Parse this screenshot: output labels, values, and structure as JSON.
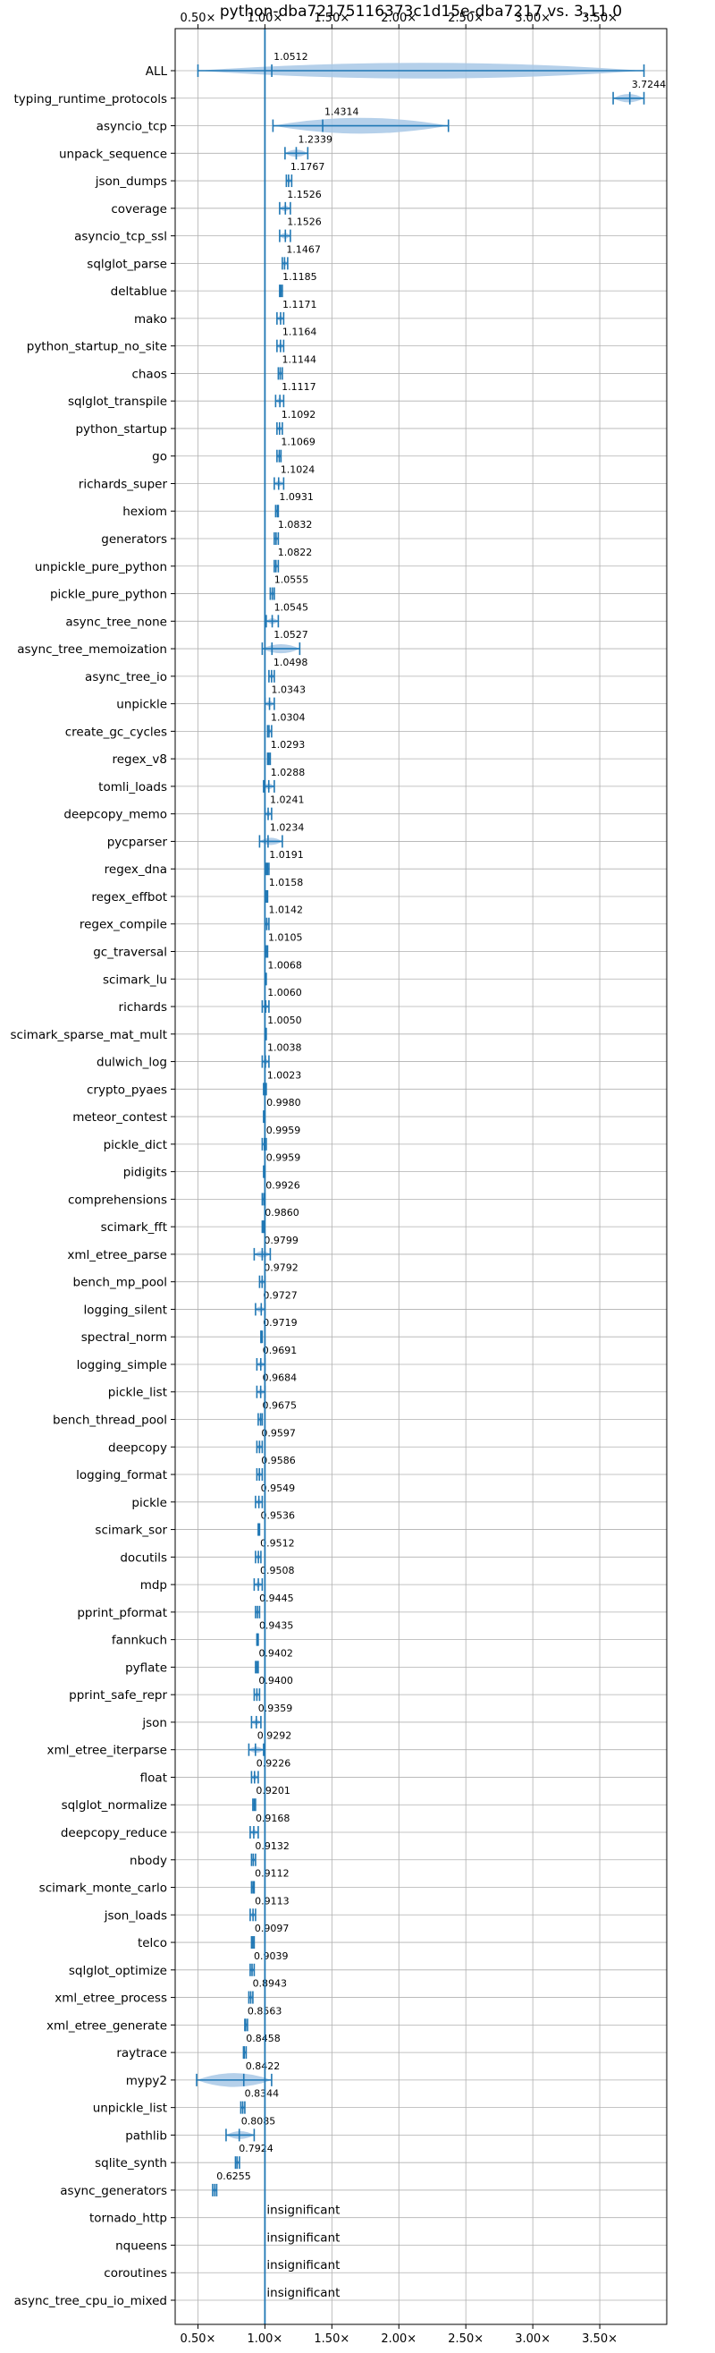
{
  "chart_data": {
    "type": "violin",
    "title": "python-dba72175116373c1d15e-dba7217 vs. 3.11.0",
    "xlim": [
      0.33,
      4.0
    ],
    "x_ticks": [
      0.5,
      1.0,
      1.5,
      2.0,
      2.5,
      3.0,
      3.5
    ],
    "x_tick_labels": [
      "0.50×",
      "1.00×",
      "1.50×",
      "2.00×",
      "2.50×",
      "3.00×",
      "3.50×"
    ],
    "ticks_top_and_bottom": true,
    "grid": true,
    "reference_line": 1.0,
    "accent_color": "#1f77b4",
    "violin_fill": "#a8c8e6",
    "insignificant_text": "insignificant",
    "rows": [
      {
        "name": "ALL",
        "value": 1.0512,
        "label": "1.0512",
        "min": 0.5,
        "max": 3.83
      },
      {
        "name": "typing_runtime_protocols",
        "value": 3.7244,
        "label": "3.7244",
        "min": 3.6,
        "max": 3.83
      },
      {
        "name": "asyncio_tcp",
        "value": 1.4314,
        "label": "1.4314",
        "min": 1.06,
        "max": 2.37
      },
      {
        "name": "unpack_sequence",
        "value": 1.2339,
        "label": "1.2339",
        "min": 1.15,
        "max": 1.32
      },
      {
        "name": "json_dumps",
        "value": 1.1767,
        "label": "1.1767",
        "min": 1.16,
        "max": 1.2
      },
      {
        "name": "coverage",
        "value": 1.1526,
        "label": "1.1526",
        "min": 1.11,
        "max": 1.19
      },
      {
        "name": "asyncio_tcp_ssl",
        "value": 1.1526,
        "label": "1.1526",
        "min": 1.11,
        "max": 1.19
      },
      {
        "name": "sqlglot_parse",
        "value": 1.1467,
        "label": "1.1467",
        "min": 1.13,
        "max": 1.17
      },
      {
        "name": "deltablue",
        "value": 1.1185,
        "label": "1.1185",
        "min": 1.11,
        "max": 1.13
      },
      {
        "name": "mako",
        "value": 1.1171,
        "label": "1.1171",
        "min": 1.09,
        "max": 1.14
      },
      {
        "name": "python_startup_no_site",
        "value": 1.1164,
        "label": "1.1164",
        "min": 1.09,
        "max": 1.14
      },
      {
        "name": "chaos",
        "value": 1.1144,
        "label": "1.1144",
        "min": 1.1,
        "max": 1.13
      },
      {
        "name": "sqlglot_transpile",
        "value": 1.1117,
        "label": "1.1117",
        "min": 1.08,
        "max": 1.14
      },
      {
        "name": "python_startup",
        "value": 1.1092,
        "label": "1.1092",
        "min": 1.09,
        "max": 1.13
      },
      {
        "name": "go",
        "value": 1.1069,
        "label": "1.1069",
        "min": 1.09,
        "max": 1.12
      },
      {
        "name": "richards_super",
        "value": 1.1024,
        "label": "1.1024",
        "min": 1.07,
        "max": 1.14
      },
      {
        "name": "hexiom",
        "value": 1.0931,
        "label": "1.0931",
        "min": 1.08,
        "max": 1.1
      },
      {
        "name": "generators",
        "value": 1.0832,
        "label": "1.0832",
        "min": 1.07,
        "max": 1.1
      },
      {
        "name": "unpickle_pure_python",
        "value": 1.0822,
        "label": "1.0822",
        "min": 1.07,
        "max": 1.1
      },
      {
        "name": "pickle_pure_python",
        "value": 1.0555,
        "label": "1.0555",
        "min": 1.04,
        "max": 1.07
      },
      {
        "name": "async_tree_none",
        "value": 1.0545,
        "label": "1.0545",
        "min": 1.01,
        "max": 1.1
      },
      {
        "name": "async_tree_memoization",
        "value": 1.0527,
        "label": "1.0527",
        "min": 0.98,
        "max": 1.26
      },
      {
        "name": "async_tree_io",
        "value": 1.0498,
        "label": "1.0498",
        "min": 1.03,
        "max": 1.07
      },
      {
        "name": "unpickle",
        "value": 1.0343,
        "label": "1.0343",
        "min": 1.0,
        "max": 1.07
      },
      {
        "name": "create_gc_cycles",
        "value": 1.0304,
        "label": "1.0304",
        "min": 1.02,
        "max": 1.05
      },
      {
        "name": "regex_v8",
        "value": 1.0293,
        "label": "1.0293",
        "min": 1.02,
        "max": 1.04
      },
      {
        "name": "tomli_loads",
        "value": 1.0288,
        "label": "1.0288",
        "min": 0.99,
        "max": 1.07
      },
      {
        "name": "deepcopy_memo",
        "value": 1.0241,
        "label": "1.0241",
        "min": 1.0,
        "max": 1.05
      },
      {
        "name": "pycparser",
        "value": 1.0234,
        "label": "1.0234",
        "min": 0.96,
        "max": 1.13
      },
      {
        "name": "regex_dna",
        "value": 1.0191,
        "label": "1.0191",
        "min": 1.01,
        "max": 1.03
      },
      {
        "name": "regex_effbot",
        "value": 1.0158,
        "label": "1.0158",
        "min": 1.01,
        "max": 1.02
      },
      {
        "name": "regex_compile",
        "value": 1.0142,
        "label": "1.0142",
        "min": 1.0,
        "max": 1.03
      },
      {
        "name": "gc_traversal",
        "value": 1.0105,
        "label": "1.0105",
        "min": 1.0,
        "max": 1.02
      },
      {
        "name": "scimark_lu",
        "value": 1.0068,
        "label": "1.0068",
        "min": 1.0,
        "max": 1.01
      },
      {
        "name": "richards",
        "value": 1.006,
        "label": "1.0060",
        "min": 0.98,
        "max": 1.03
      },
      {
        "name": "scimark_sparse_mat_mult",
        "value": 1.005,
        "label": "1.0050",
        "min": 1.0,
        "max": 1.01
      },
      {
        "name": "dulwich_log",
        "value": 1.0038,
        "label": "1.0038",
        "min": 0.98,
        "max": 1.03
      },
      {
        "name": "crypto_pyaes",
        "value": 1.0023,
        "label": "1.0023",
        "min": 0.99,
        "max": 1.01
      },
      {
        "name": "meteor_contest",
        "value": 0.998,
        "label": "0.9980",
        "min": 0.99,
        "max": 1.0
      },
      {
        "name": "pickle_dict",
        "value": 0.9959,
        "label": "0.9959",
        "min": 0.98,
        "max": 1.01
      },
      {
        "name": "pidigits",
        "value": 0.9959,
        "label": "0.9959",
        "min": 0.99,
        "max": 1.0
      },
      {
        "name": "comprehensions",
        "value": 0.9926,
        "label": "0.9926",
        "min": 0.98,
        "max": 1.0
      },
      {
        "name": "scimark_fft",
        "value": 0.986,
        "label": "0.9860",
        "min": 0.98,
        "max": 0.99
      },
      {
        "name": "xml_etree_parse",
        "value": 0.9799,
        "label": "0.9799",
        "min": 0.92,
        "max": 1.04
      },
      {
        "name": "bench_mp_pool",
        "value": 0.9792,
        "label": "0.9792",
        "min": 0.96,
        "max": 1.0
      },
      {
        "name": "logging_silent",
        "value": 0.9727,
        "label": "0.9727",
        "min": 0.93,
        "max": 1.0
      },
      {
        "name": "spectral_norm",
        "value": 0.9719,
        "label": "0.9719",
        "min": 0.97,
        "max": 0.98
      },
      {
        "name": "logging_simple",
        "value": 0.9691,
        "label": "0.9691",
        "min": 0.94,
        "max": 1.0
      },
      {
        "name": "pickle_list",
        "value": 0.9684,
        "label": "0.9684",
        "min": 0.94,
        "max": 1.0
      },
      {
        "name": "bench_thread_pool",
        "value": 0.9675,
        "label": "0.9675",
        "min": 0.95,
        "max": 0.98
      },
      {
        "name": "deepcopy",
        "value": 0.9597,
        "label": "0.9597",
        "min": 0.94,
        "max": 0.98
      },
      {
        "name": "logging_format",
        "value": 0.9586,
        "label": "0.9586",
        "min": 0.94,
        "max": 0.98
      },
      {
        "name": "pickle",
        "value": 0.9549,
        "label": "0.9549",
        "min": 0.93,
        "max": 0.98
      },
      {
        "name": "scimark_sor",
        "value": 0.9536,
        "label": "0.9536",
        "min": 0.95,
        "max": 0.96
      },
      {
        "name": "docutils",
        "value": 0.9512,
        "label": "0.9512",
        "min": 0.93,
        "max": 0.97
      },
      {
        "name": "mdp",
        "value": 0.9508,
        "label": "0.9508",
        "min": 0.92,
        "max": 0.98
      },
      {
        "name": "pprint_pformat",
        "value": 0.9445,
        "label": "0.9445",
        "min": 0.93,
        "max": 0.96
      },
      {
        "name": "fannkuch",
        "value": 0.9435,
        "label": "0.9435",
        "min": 0.94,
        "max": 0.95
      },
      {
        "name": "pyflate",
        "value": 0.9402,
        "label": "0.9402",
        "min": 0.93,
        "max": 0.95
      },
      {
        "name": "pprint_safe_repr",
        "value": 0.94,
        "label": "0.9400",
        "min": 0.92,
        "max": 0.96
      },
      {
        "name": "json",
        "value": 0.9359,
        "label": "0.9359",
        "min": 0.9,
        "max": 0.97
      },
      {
        "name": "xml_etree_iterparse",
        "value": 0.9292,
        "label": "0.9292",
        "min": 0.88,
        "max": 0.99
      },
      {
        "name": "float",
        "value": 0.9226,
        "label": "0.9226",
        "min": 0.9,
        "max": 0.95
      },
      {
        "name": "sqlglot_normalize",
        "value": 0.9201,
        "label": "0.9201",
        "min": 0.91,
        "max": 0.93
      },
      {
        "name": "deepcopy_reduce",
        "value": 0.9168,
        "label": "0.9168",
        "min": 0.89,
        "max": 0.95
      },
      {
        "name": "nbody",
        "value": 0.9132,
        "label": "0.9132",
        "min": 0.9,
        "max": 0.93
      },
      {
        "name": "scimark_monte_carlo",
        "value": 0.9112,
        "label": "0.9112",
        "min": 0.9,
        "max": 0.92
      },
      {
        "name": "json_loads",
        "value": 0.9113,
        "label": "0.9113",
        "min": 0.89,
        "max": 0.93
      },
      {
        "name": "telco",
        "value": 0.9097,
        "label": "0.9097",
        "min": 0.9,
        "max": 0.92
      },
      {
        "name": "sqlglot_optimize",
        "value": 0.9039,
        "label": "0.9039",
        "min": 0.89,
        "max": 0.92
      },
      {
        "name": "xml_etree_process",
        "value": 0.8943,
        "label": "0.8943",
        "min": 0.88,
        "max": 0.91
      },
      {
        "name": "xml_etree_generate",
        "value": 0.8563,
        "label": "0.8563",
        "min": 0.85,
        "max": 0.87
      },
      {
        "name": "raytrace",
        "value": 0.8458,
        "label": "0.8458",
        "min": 0.84,
        "max": 0.86
      },
      {
        "name": "mypy2",
        "value": 0.8422,
        "label": "0.8422",
        "min": 0.49,
        "max": 1.05
      },
      {
        "name": "unpickle_list",
        "value": 0.8344,
        "label": "0.8344",
        "min": 0.82,
        "max": 0.85
      },
      {
        "name": "pathlib",
        "value": 0.8085,
        "label": "0.8085",
        "min": 0.71,
        "max": 0.92
      },
      {
        "name": "sqlite_synth",
        "value": 0.7924,
        "label": "0.7924",
        "min": 0.78,
        "max": 0.81
      },
      {
        "name": "async_generators",
        "value": 0.6255,
        "label": "0.6255",
        "min": 0.61,
        "max": 0.64
      },
      {
        "name": "tornado_http",
        "value": null,
        "label": "insignificant"
      },
      {
        "name": "nqueens",
        "value": null,
        "label": "insignificant"
      },
      {
        "name": "coroutines",
        "value": null,
        "label": "insignificant"
      },
      {
        "name": "async_tree_cpu_io_mixed",
        "value": null,
        "label": "insignificant"
      }
    ]
  }
}
